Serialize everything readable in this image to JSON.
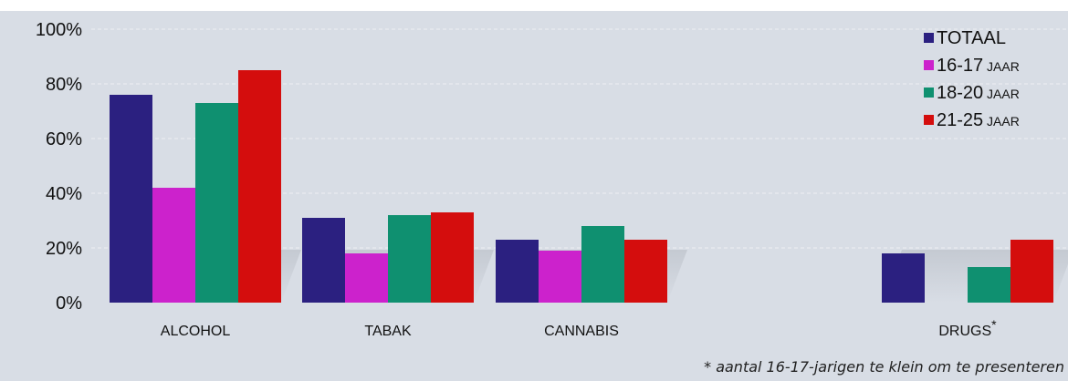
{
  "chart_data": {
    "type": "bar",
    "categories": [
      "ALCOHOL",
      "TABAK",
      "CANNABIS",
      "DRUGS"
    ],
    "category_superscripts": [
      "",
      "",
      "",
      "*"
    ],
    "series": [
      {
        "name": "TOTAAL",
        "name_main": "TOTAAL",
        "name_suffix": "",
        "color": "#2b2080",
        "values": [
          76,
          31,
          23,
          18
        ]
      },
      {
        "name": "16-17 JAAR",
        "name_main": "16-17",
        "name_suffix": "JAAR",
        "color": "#cc22cc",
        "values": [
          42,
          18,
          19,
          null
        ]
      },
      {
        "name": "18-20 JAAR",
        "name_main": "18-20",
        "name_suffix": "JAAR",
        "color": "#0f9070",
        "values": [
          73,
          32,
          28,
          13
        ]
      },
      {
        "name": "21-25 JAAR",
        "name_main": "21-25",
        "name_suffix": "JAAR",
        "color": "#d40d0d",
        "values": [
          85,
          33,
          23,
          23
        ]
      }
    ],
    "y_ticks": [
      "0%",
      "20%",
      "40%",
      "60%",
      "80%",
      "100%"
    ],
    "ylim": [
      0,
      100
    ],
    "grid": true,
    "legend_position": "top-right",
    "title": "",
    "xlabel": "",
    "ylabel": ""
  },
  "footnote": "* aantal 16-17-jarigen te klein om te presenteren"
}
